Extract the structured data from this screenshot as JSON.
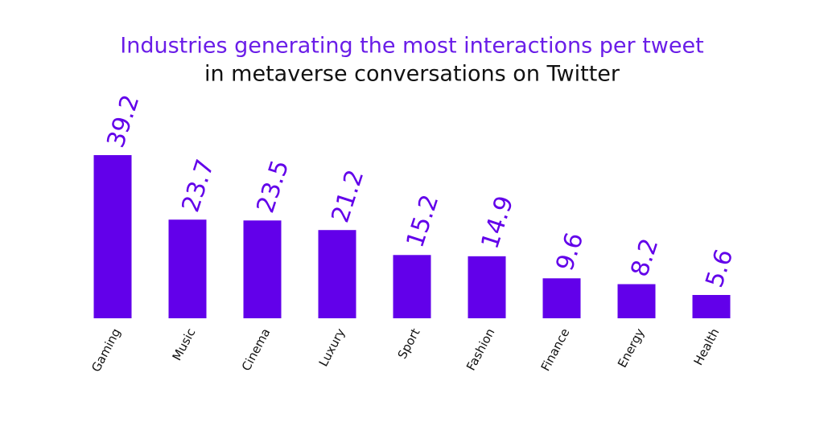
{
  "chart_data": {
    "type": "bar",
    "title": "Industries generating the most interactions per tweet",
    "subtitle": "in metaverse conversations on Twitter",
    "categories": [
      "Gaming",
      "Music",
      "Cinema",
      "Luxury",
      "Sport",
      "Fashion",
      "Finance",
      "Energy",
      "Health"
    ],
    "values": [
      39.2,
      23.7,
      23.5,
      21.2,
      15.2,
      14.9,
      9.6,
      8.2,
      5.6
    ],
    "value_labels": [
      "39.2",
      "23.7",
      "23.5",
      "21.2",
      "15.2",
      "14.9",
      "9.6",
      "8.2",
      "5.6"
    ],
    "color": "#6200ea"
  }
}
